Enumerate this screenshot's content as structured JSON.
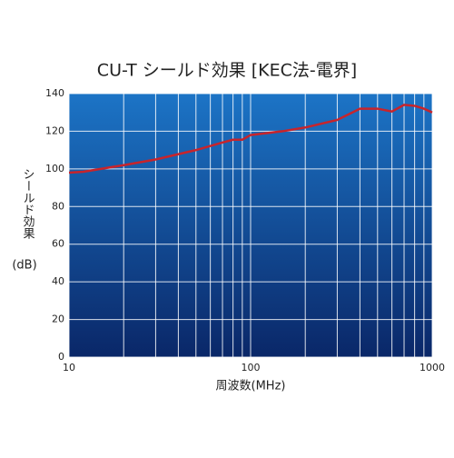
{
  "chart_data": {
    "type": "line",
    "title": "CU-T シールド効果 [KEC法-電界]",
    "ylabel": "シールド効果",
    "yunit": "(dB)",
    "xlabel": "周波数(MHz)",
    "log_x": true,
    "grid": true,
    "xlim": [
      10,
      1000
    ],
    "xticks": [
      10,
      100,
      1000
    ],
    "xminorticks": [
      20,
      30,
      40,
      50,
      60,
      70,
      80,
      90,
      200,
      300,
      400,
      500,
      600,
      700,
      800,
      900
    ],
    "ylim": [
      0,
      140
    ],
    "yticks": [
      0,
      20,
      40,
      60,
      80,
      100,
      120,
      140
    ],
    "x": [
      10,
      12,
      20,
      30,
      50,
      70,
      80,
      90,
      100,
      150,
      200,
      300,
      400,
      500,
      600,
      700,
      800,
      900,
      1000
    ],
    "series": [
      {
        "color": "#c8242b",
        "values": [
          98,
          98.5,
          102,
          105,
          110,
          114,
          115.5,
          115.5,
          118,
          120,
          122,
          126,
          132,
          132,
          130.5,
          134,
          133.5,
          132,
          130
        ]
      }
    ]
  }
}
